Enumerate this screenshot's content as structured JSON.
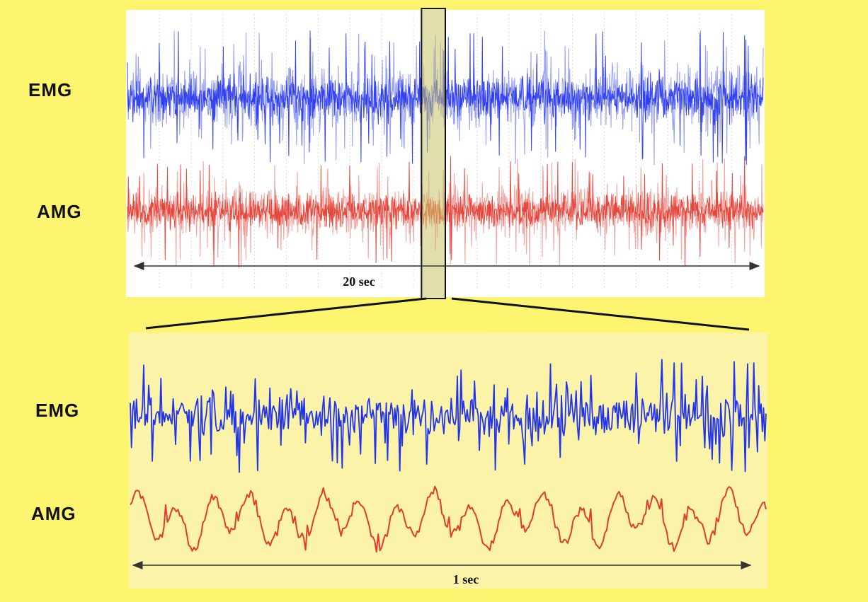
{
  "colors": {
    "background": "#fdf46f",
    "top_panel": "#ffffff",
    "bottom_panel": "#fbf4a8",
    "emg": "#2233ee",
    "amg": "#e33a2e",
    "axis": "#333333"
  },
  "chart_data": [
    {
      "type": "line",
      "panel": "top",
      "xlim": [
        0,
        20
      ],
      "series": [
        {
          "name": "EMG",
          "baseline": 0.55,
          "spread": "high-density noise"
        },
        {
          "name": "AMG",
          "baseline": -0.55,
          "spread": "high-density noise"
        }
      ],
      "span_label": "20 sec",
      "highlight_window": [
        9.25,
        10.0
      ]
    },
    {
      "type": "line",
      "panel": "bottom",
      "xlim": [
        0,
        1
      ],
      "series": [
        {
          "name": "EMG"
        },
        {
          "name": "AMG"
        }
      ],
      "span_label": "1 sec"
    }
  ],
  "labels": {
    "top_emg": "EMG",
    "top_amg": "AMG",
    "bottom_emg": "EMG",
    "bottom_amg": "AMG"
  }
}
